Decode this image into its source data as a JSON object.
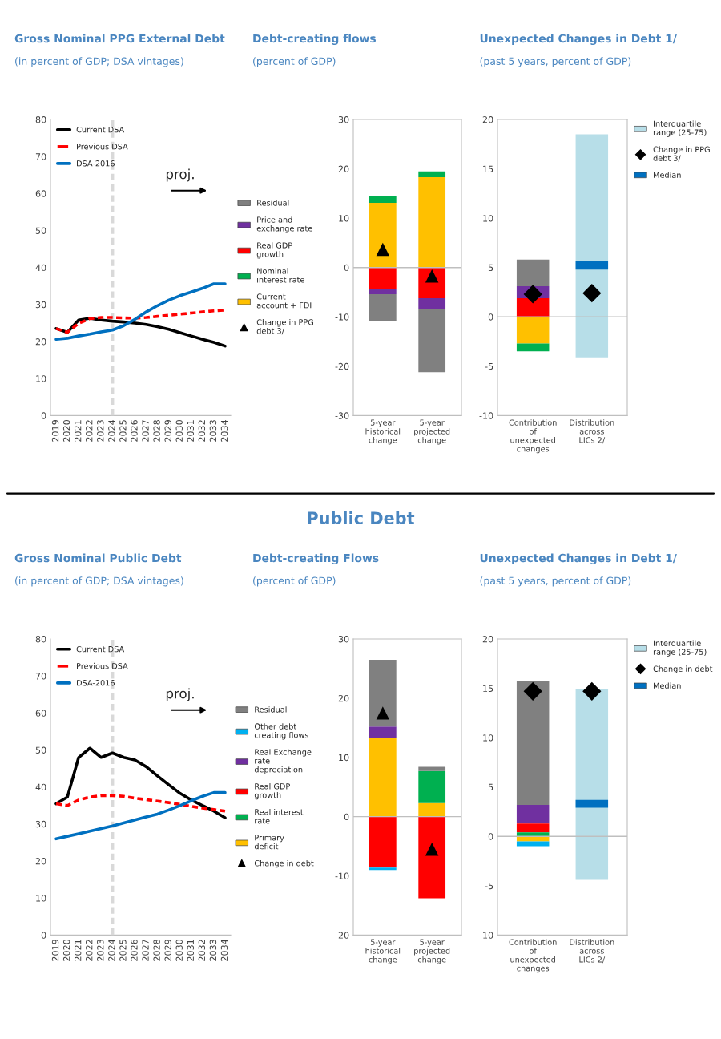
{
  "chart_data": [
    {
      "type": "line",
      "title": "Gross Nominal PPG External Debt",
      "subtitle": "(in percent of GDP; DSA vintages)",
      "x": [
        2019,
        2020,
        2021,
        2022,
        2023,
        2024,
        2025,
        2026,
        2027,
        2028,
        2029,
        2030,
        2031,
        2032,
        2033,
        2034
      ],
      "series": [
        {
          "name": "Current DSA",
          "color": "#000000",
          "line_style": "solid",
          "values": [
            23.5,
            22.5,
            25.8,
            26.3,
            25.8,
            25.5,
            25.3,
            25.0,
            24.6,
            24.0,
            23.3,
            22.4,
            21.5,
            20.6,
            19.8,
            18.8
          ]
        },
        {
          "name": "Previous DSA",
          "color": "#ff0000",
          "line_style": "dashed",
          "values": [
            23.5,
            22.5,
            24.9,
            26.2,
            26.5,
            26.5,
            26.4,
            26.3,
            26.5,
            26.8,
            27.1,
            27.4,
            27.7,
            28.0,
            28.3,
            28.5
          ]
        },
        {
          "name": "DSA-2016",
          "color": "#0070c0",
          "line_style": "solid",
          "values": [
            20.6,
            20.9,
            21.5,
            22.0,
            22.6,
            23.1,
            24.3,
            26.0,
            28.0,
            29.7,
            31.2,
            32.4,
            33.4,
            34.4,
            35.6,
            35.6
          ]
        }
      ],
      "xlim": [
        2018.5,
        2034.5
      ],
      "xticks": [
        2019,
        2020,
        2021,
        2022,
        2023,
        2024,
        2025,
        2026,
        2027,
        2028,
        2029,
        2030,
        2031,
        2032,
        2033,
        2034
      ],
      "ylim": [
        0,
        80
      ],
      "yticks": [
        0,
        10,
        20,
        30,
        40,
        50,
        60,
        70,
        80
      ],
      "legend": "top left",
      "ref_lines": [
        {
          "axis": "x",
          "value": 2024,
          "color": "#d9d9d9",
          "line_style": "dashed"
        }
      ],
      "annotations": [
        "proj."
      ]
    },
    {
      "type": "bar",
      "title": "Debt-creating flows",
      "subtitle": "(percent of GDP)",
      "stacked": true,
      "categories": [
        "5-year historical change",
        "5-year projected change"
      ],
      "series": [
        {
          "name": "Current account + FDI",
          "color": "#ffc000",
          "values": [
            13.1,
            18.3
          ]
        },
        {
          "name": "Nominal interest rate",
          "color": "#00b050",
          "values": [
            1.4,
            1.2
          ]
        },
        {
          "name": "Real GDP growth",
          "color": "#ff0000",
          "values": [
            -4.3,
            -6.2
          ]
        },
        {
          "name": "Price and exchange rate",
          "color": "#7030a0",
          "values": [
            -1.1,
            -2.3
          ]
        },
        {
          "name": "Residual",
          "color": "#808080",
          "values": [
            -5.4,
            -12.7
          ]
        },
        {
          "name": "Change in PPG debt 3/",
          "type": "scatter",
          "marker": "triangle",
          "color": "#000000",
          "values": [
            3.7,
            -1.7
          ]
        }
      ],
      "ylim": [
        -30,
        30
      ],
      "yticks": [
        -30,
        -20,
        -10,
        0,
        10,
        20,
        30
      ],
      "legend": "left",
      "ref_lines": [
        {
          "axis": "y",
          "value": 0,
          "color": "#bfbfbf"
        }
      ]
    },
    {
      "type": "bar",
      "title": "Unexpected Changes in Debt 1/",
      "subtitle": "(past 5 years, percent of GDP)",
      "categories": [
        "Contribution of unexpected changes",
        "Distribution across LICs 2/"
      ],
      "series": [
        {
          "color": "#ffc000",
          "base": [
            0,
            null
          ],
          "values": [
            -2.7,
            null
          ]
        },
        {
          "color": "#00b050",
          "base": [
            -2.7,
            null
          ],
          "values": [
            -0.8,
            null
          ]
        },
        {
          "color": "#ff0000",
          "base": [
            0,
            null
          ],
          "values": [
            1.9,
            null
          ]
        },
        {
          "color": "#7030a0",
          "base": [
            1.9,
            null
          ],
          "values": [
            1.2,
            null
          ]
        },
        {
          "color": "#808080",
          "base": [
            3.1,
            null
          ],
          "values": [
            2.7,
            null
          ]
        },
        {
          "name": "Interquartile range (25-75)",
          "color": "#b7dee8",
          "base": [
            null,
            -4.1
          ],
          "values": [
            null,
            22.6
          ]
        },
        {
          "name": "Change in PPG debt 3/",
          "type": "scatter",
          "marker": "diamond",
          "color": "#000000",
          "values": [
            2.3,
            2.4
          ]
        },
        {
          "name": "Median",
          "color": "#0070c0",
          "base": [
            null,
            4.8
          ],
          "values": [
            null,
            0.9
          ]
        }
      ],
      "ylim": [
        -10,
        20
      ],
      "yticks": [
        -10,
        -5,
        0,
        5,
        10,
        15,
        20
      ],
      "legend": "right",
      "ref_lines": [
        {
          "axis": "y",
          "value": 0,
          "color": "#bfbfbf"
        }
      ]
    },
    {
      "type": "line",
      "title": "Gross Nominal Public Debt",
      "subtitle": "(in percent of GDP; DSA vintages)",
      "x": [
        2019,
        2020,
        2021,
        2022,
        2023,
        2024,
        2025,
        2026,
        2027,
        2028,
        2029,
        2030,
        2031,
        2032,
        2033,
        2034
      ],
      "series": [
        {
          "name": "Current DSA",
          "color": "#000000",
          "line_style": "solid",
          "values": [
            35.5,
            37.3,
            48.0,
            50.5,
            48.0,
            49.2,
            48.0,
            47.3,
            45.5,
            43.0,
            40.6,
            38.3,
            36.5,
            35.0,
            33.5,
            31.7
          ]
        },
        {
          "name": "Previous DSA",
          "color": "#ff0000",
          "line_style": "dashed",
          "values": [
            35.5,
            35.0,
            36.5,
            37.3,
            37.7,
            37.7,
            37.5,
            37.0,
            36.6,
            36.2,
            35.8,
            35.3,
            34.8,
            34.3,
            33.9,
            33.5
          ]
        },
        {
          "name": "DSA-2016",
          "color": "#0070c0",
          "line_style": "solid",
          "values": [
            26.0,
            26.7,
            27.4,
            28.1,
            28.8,
            29.5,
            30.3,
            31.1,
            31.9,
            32.7,
            33.8,
            35.0,
            36.3,
            37.5,
            38.5,
            38.5
          ]
        }
      ],
      "xlim": [
        2018.5,
        2034.5
      ],
      "xticks": [
        2019,
        2020,
        2021,
        2022,
        2023,
        2024,
        2025,
        2026,
        2027,
        2028,
        2029,
        2030,
        2031,
        2032,
        2033,
        2034
      ],
      "ylim": [
        0,
        80
      ],
      "yticks": [
        0,
        10,
        20,
        30,
        40,
        50,
        60,
        70,
        80
      ],
      "legend": "top left",
      "ref_lines": [
        {
          "axis": "x",
          "value": 2024,
          "color": "#d9d9d9",
          "line_style": "dashed"
        }
      ],
      "annotations": [
        "proj."
      ]
    },
    {
      "type": "bar",
      "title": "Debt-creating Flows",
      "subtitle": "(percent of GDP)",
      "stacked": true,
      "categories": [
        "5-year historical change",
        "5-year projected change"
      ],
      "series": [
        {
          "name": "Primary deficit",
          "color": "#ffc000",
          "values": [
            13.3,
            2.3
          ]
        },
        {
          "name": "Real interest rate",
          "color": "#00b050",
          "values": [
            0,
            5.4
          ]
        },
        {
          "name": "Real GDP growth",
          "color": "#ff0000",
          "values": [
            -8.6,
            -13.8
          ]
        },
        {
          "name": "Real Exchange rate depreciation",
          "color": "#7030a0",
          "values": [
            1.9,
            0
          ]
        },
        {
          "name": "Other debt creating flows",
          "color": "#00b0f0",
          "values": [
            -0.4,
            0
          ]
        },
        {
          "name": "Residual",
          "color": "#808080",
          "values": [
            11.3,
            0.7
          ]
        },
        {
          "name": "Change in debt",
          "type": "scatter",
          "marker": "triangle",
          "color": "#000000",
          "values": [
            17.5,
            -5.5
          ]
        }
      ],
      "ylim": [
        -20,
        30
      ],
      "yticks": [
        -20,
        -10,
        0,
        10,
        20,
        30
      ],
      "legend": "left",
      "ref_lines": [
        {
          "axis": "y",
          "value": 0,
          "color": "#bfbfbf"
        }
      ],
      "annotations": [
        "Public Debt"
      ]
    },
    {
      "type": "bar",
      "title": "Unexpected Changes in Debt 1/",
      "subtitle": "(past 5 years, percent of GDP)",
      "categories": [
        "Contribution of unexpected changes",
        "Distribution across LICs 2/"
      ],
      "series": [
        {
          "color": "#808080",
          "base": [
            3.2,
            null
          ],
          "values": [
            12.5,
            null
          ]
        },
        {
          "color": "#7030a0",
          "base": [
            1.3,
            null
          ],
          "values": [
            1.9,
            null
          ]
        },
        {
          "color": "#ff0000",
          "base": [
            0.4,
            null
          ],
          "values": [
            0.9,
            null
          ]
        },
        {
          "color": "#00b050",
          "base": [
            0,
            null
          ],
          "values": [
            0.4,
            null
          ]
        },
        {
          "color": "#ffc000",
          "base": [
            0,
            null
          ],
          "values": [
            -0.5,
            null
          ]
        },
        {
          "color": "#00b0f0",
          "base": [
            -0.5,
            null
          ],
          "values": [
            -0.5,
            null
          ]
        },
        {
          "name": "Interquartile range (25-75)",
          "color": "#b7dee8",
          "base": [
            null,
            -4.4
          ],
          "values": [
            null,
            19.3
          ]
        },
        {
          "name": "Change in debt",
          "type": "scatter",
          "marker": "diamond",
          "color": "#000000",
          "values": [
            14.7,
            14.7
          ]
        },
        {
          "name": "Median",
          "color": "#0070c0",
          "base": [
            null,
            2.9
          ],
          "values": [
            null,
            0.8
          ]
        }
      ],
      "ylim": [
        -10,
        20
      ],
      "yticks": [
        -10,
        -5,
        0,
        5,
        10,
        15,
        20
      ],
      "legend": "right",
      "ref_lines": [
        {
          "axis": "y",
          "value": 0,
          "color": "#bfbfbf"
        }
      ]
    }
  ]
}
